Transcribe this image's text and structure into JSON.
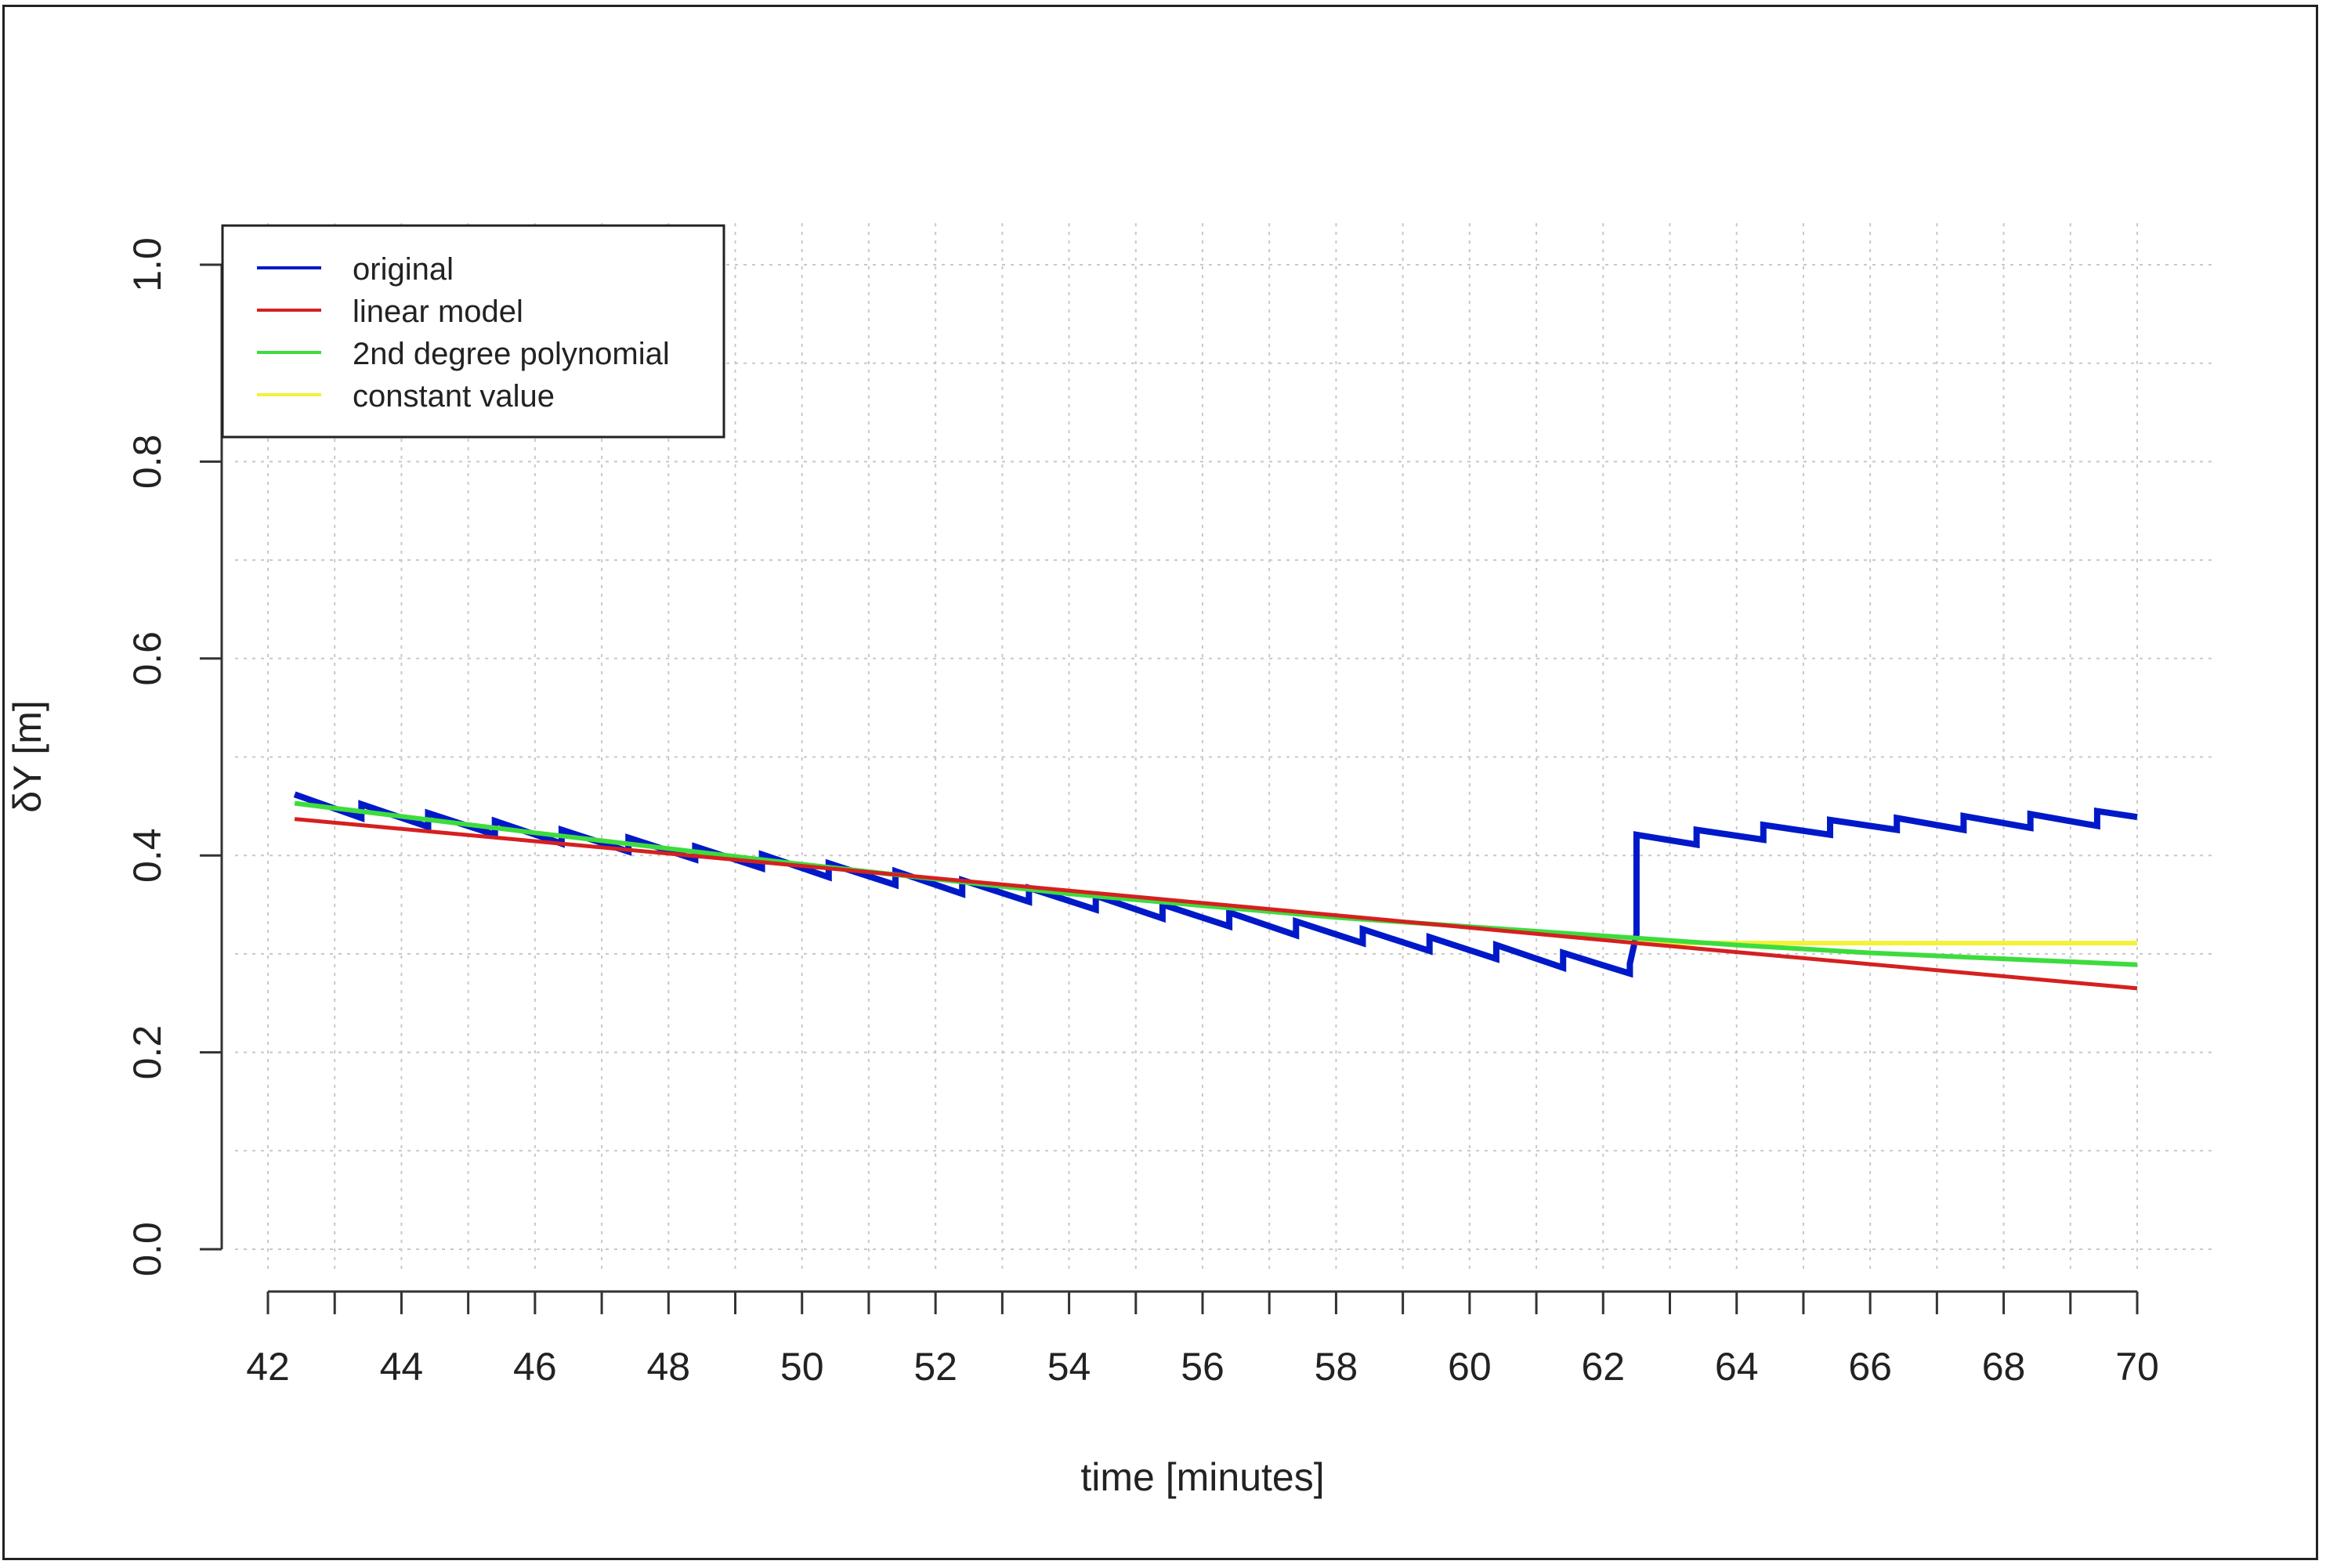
{
  "chart_data": {
    "type": "line",
    "title": "",
    "xlabel": "time [minutes]",
    "ylabel": "δY [m]",
    "xlim": [
      41.9,
      70.1
    ],
    "ylim": [
      0.0,
      1.0
    ],
    "x_ticks": [
      42,
      44,
      46,
      48,
      50,
      52,
      54,
      56,
      58,
      60,
      62,
      64,
      66,
      68,
      70
    ],
    "x_ticks_minor": [
      43,
      45,
      47,
      49,
      51,
      53,
      55,
      57,
      59,
      61,
      63,
      65,
      67,
      69
    ],
    "x_tick_labels": [
      "42",
      "44",
      "46",
      "48",
      "50",
      "52",
      "54",
      "56",
      "58",
      "60",
      "62",
      "64",
      "66",
      "68",
      "70"
    ],
    "y_ticks": [
      0.0,
      0.2,
      0.4,
      0.6,
      0.8,
      1.0
    ],
    "y_tick_labels": [
      "0.0",
      "0.2",
      "0.4",
      "0.6",
      "0.8",
      "1.0"
    ],
    "grid": true,
    "legend_position": "top-left",
    "series": [
      {
        "name": "original",
        "color": "#0019c8",
        "x": [
          42.4,
          43.4,
          43.4,
          44.4,
          44.4,
          45.4,
          45.4,
          46.4,
          46.4,
          47.4,
          47.4,
          48.4,
          48.4,
          49.4,
          49.4,
          50.4,
          50.4,
          51.4,
          51.4,
          52.4,
          52.4,
          53.4,
          53.4,
          54.4,
          54.4,
          55.4,
          55.4,
          56.4,
          56.4,
          57.4,
          57.4,
          58.4,
          58.4,
          59.4,
          59.4,
          60.4,
          60.4,
          61.4,
          61.4,
          62.4,
          62.4,
          62.5,
          62.5,
          63.4,
          63.4,
          64.4,
          64.4,
          65.4,
          65.4,
          66.4,
          66.4,
          67.4,
          67.4,
          68.4,
          68.4,
          69.4,
          69.4,
          70.0
        ],
        "y": [
          0.462,
          0.438,
          0.452,
          0.429,
          0.443,
          0.421,
          0.435,
          0.412,
          0.426,
          0.404,
          0.418,
          0.396,
          0.409,
          0.387,
          0.401,
          0.378,
          0.392,
          0.37,
          0.384,
          0.361,
          0.375,
          0.353,
          0.367,
          0.345,
          0.359,
          0.336,
          0.35,
          0.328,
          0.342,
          0.319,
          0.333,
          0.311,
          0.325,
          0.303,
          0.317,
          0.295,
          0.309,
          0.286,
          0.301,
          0.28,
          0.29,
          0.32,
          0.421,
          0.411,
          0.426,
          0.416,
          0.431,
          0.421,
          0.436,
          0.426,
          0.438,
          0.426,
          0.44,
          0.428,
          0.442,
          0.43,
          0.445,
          0.439
        ]
      },
      {
        "name": "linear model",
        "color": "#d52020",
        "x": [
          42.4,
          62.5,
          70.0
        ],
        "y": [
          0.437,
          0.311,
          0.265
        ]
      },
      {
        "name": "2nd degree polynomial",
        "color": "#3ddc3d",
        "x": [
          42.4,
          46,
          50,
          54,
          58,
          62.5,
          64,
          66,
          68,
          70.0
        ],
        "y": [
          0.453,
          0.423,
          0.391,
          0.361,
          0.337,
          0.316,
          0.309,
          0.301,
          0.295,
          0.289
        ]
      },
      {
        "name": "constant value",
        "color": "#f2f23a",
        "x": [
          62.5,
          70.0
        ],
        "y": [
          0.311,
          0.311
        ]
      }
    ]
  }
}
